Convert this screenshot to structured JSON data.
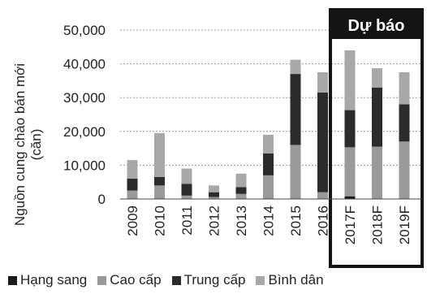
{
  "chart_data": {
    "type": "bar",
    "stacked": true,
    "title": "",
    "xlabel": "",
    "ylabel": "Nguồn cung chào bán mới (căn)",
    "ylim": [
      0,
      50000
    ],
    "yticks": [
      "0",
      "10,000",
      "20,000",
      "30,000",
      "40,000",
      "50,000"
    ],
    "grid": true,
    "legend_position": "bottom",
    "categories": [
      "2009",
      "2010",
      "2011",
      "2012",
      "2013",
      "2014",
      "2015",
      "2016",
      "2017F",
      "2018F",
      "2019F"
    ],
    "forecast_label": "Dự báo",
    "forecast_categories": [
      "2017F",
      "2018F",
      "2019F"
    ],
    "series": [
      {
        "name": "Hạng sang",
        "color": "#1a1a1a",
        "values": [
          0,
          0,
          0,
          0,
          0,
          0,
          0,
          0,
          800,
          0,
          0
        ]
      },
      {
        "name": "Cao cấp",
        "color": "#9a9a9a",
        "values": [
          2500,
          4000,
          1000,
          600,
          1500,
          7000,
          16000,
          2000,
          14500,
          15500,
          17000
        ]
      },
      {
        "name": "Trung cấp",
        "color": "#2b2b2b",
        "values": [
          3500,
          2500,
          3500,
          1400,
          2000,
          6500,
          21000,
          29500,
          11000,
          17500,
          11000
        ]
      },
      {
        "name": "Bình dân",
        "color": "#a8a8a8",
        "values": [
          5500,
          13000,
          4500,
          2000,
          4000,
          5500,
          4200,
          6000,
          17700,
          5700,
          9500
        ]
      }
    ]
  }
}
